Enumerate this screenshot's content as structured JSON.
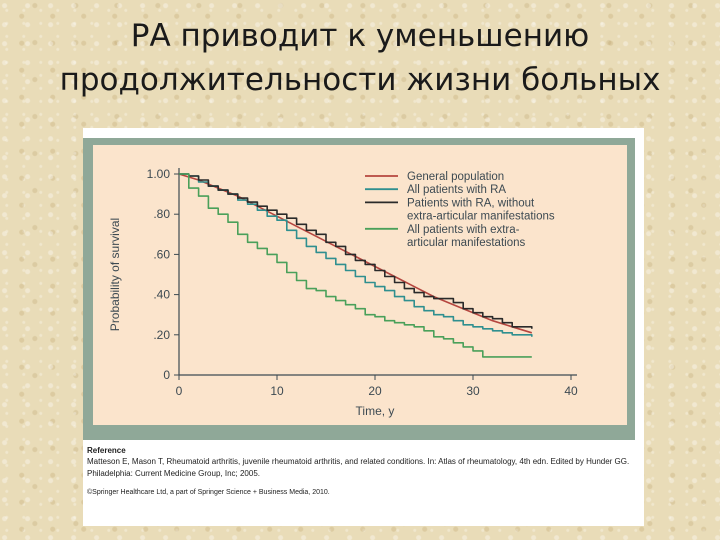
{
  "slide": {
    "title_line1": "РА приводит к уменьшению",
    "title_line2": "продолжительности жизни больных"
  },
  "reference": {
    "heading": "Reference",
    "text": "Matteson E, Mason T, Rheumatoid arthritis, juvenile rheumatoid arthritis, and related conditions. In: Atlas of rheumatology, 4th edn. Edited by Hunder GG. Philadelphia: Current Medicine Group, Inc; 2005.",
    "copyright": "©Springer Healthcare Ltd, a part of Springer Science + Business Media, 2010."
  },
  "colors": {
    "panel_bg": "#8fa898",
    "plot_bg": "#fbe4cc",
    "general_population": "#b5463f",
    "all_ra": "#2f8f8f",
    "ra_without_extra": "#2a2a2a",
    "ra_extra": "#4aa05a"
  },
  "chart_data": {
    "type": "line",
    "title": "",
    "xlabel": "Time, y",
    "ylabel": "Probability of survival",
    "xlim": [
      0,
      40
    ],
    "ylim": [
      0,
      1.0
    ],
    "x_ticks": [
      "0",
      "10",
      "20",
      "30",
      "40"
    ],
    "x_tick_values": [
      0,
      10,
      20,
      30,
      40
    ],
    "y_ticks": [
      "0",
      ".20",
      ".40",
      ".60",
      ".80",
      "1.00"
    ],
    "y_tick_values": [
      0,
      0.2,
      0.4,
      0.6,
      0.8,
      1.0
    ],
    "grid": false,
    "legend_position": "top-right",
    "series": [
      {
        "name": "General population",
        "color_key": "general_population",
        "step": false,
        "x": [
          0,
          2,
          4,
          6,
          8,
          10,
          12,
          14,
          16,
          18,
          20,
          22,
          24,
          26,
          28,
          30,
          32,
          34,
          36
        ],
        "y": [
          1.0,
          0.97,
          0.93,
          0.89,
          0.84,
          0.79,
          0.74,
          0.69,
          0.64,
          0.59,
          0.54,
          0.49,
          0.44,
          0.39,
          0.35,
          0.31,
          0.27,
          0.24,
          0.21
        ]
      },
      {
        "name": "All patients with RA",
        "color_key": "all_ra",
        "step": true,
        "x": [
          0,
          1,
          2,
          3,
          4,
          5,
          6,
          7,
          8,
          9,
          10,
          11,
          12,
          13,
          14,
          15,
          16,
          17,
          18,
          19,
          20,
          21,
          22,
          23,
          24,
          25,
          26,
          27,
          28,
          29,
          30,
          31,
          32,
          33,
          34,
          35,
          36
        ],
        "y": [
          1.0,
          0.99,
          0.96,
          0.94,
          0.92,
          0.9,
          0.87,
          0.85,
          0.82,
          0.79,
          0.77,
          0.72,
          0.68,
          0.64,
          0.61,
          0.58,
          0.55,
          0.52,
          0.49,
          0.46,
          0.44,
          0.42,
          0.39,
          0.37,
          0.34,
          0.32,
          0.3,
          0.29,
          0.27,
          0.25,
          0.24,
          0.23,
          0.22,
          0.21,
          0.2,
          0.2,
          0.19
        ]
      },
      {
        "name": "Patients with RA, without extra-articular manifestations",
        "color_key": "ra_without_extra",
        "step": true,
        "x": [
          0,
          1,
          2,
          3,
          4,
          5,
          6,
          7,
          8,
          9,
          10,
          11,
          12,
          13,
          14,
          15,
          16,
          17,
          18,
          19,
          20,
          21,
          22,
          23,
          24,
          25,
          26,
          27,
          28,
          29,
          30,
          31,
          32,
          33,
          34,
          35,
          36
        ],
        "y": [
          1.0,
          0.99,
          0.97,
          0.94,
          0.92,
          0.9,
          0.88,
          0.86,
          0.84,
          0.82,
          0.8,
          0.78,
          0.75,
          0.72,
          0.7,
          0.66,
          0.64,
          0.6,
          0.57,
          0.55,
          0.52,
          0.49,
          0.46,
          0.43,
          0.41,
          0.39,
          0.38,
          0.38,
          0.36,
          0.33,
          0.31,
          0.29,
          0.28,
          0.26,
          0.24,
          0.24,
          0.23
        ]
      },
      {
        "name": "All patients with extra-articular manifestations",
        "color_key": "ra_extra",
        "step": true,
        "x": [
          0,
          1,
          2,
          3,
          4,
          5,
          6,
          7,
          8,
          9,
          10,
          11,
          12,
          13,
          14,
          15,
          16,
          17,
          18,
          19,
          20,
          21,
          22,
          23,
          24,
          25,
          26,
          27,
          28,
          29,
          30,
          31,
          32,
          33,
          34,
          35,
          36
        ],
        "y": [
          1.0,
          0.93,
          0.89,
          0.83,
          0.8,
          0.76,
          0.7,
          0.66,
          0.63,
          0.6,
          0.56,
          0.51,
          0.47,
          0.43,
          0.42,
          0.39,
          0.37,
          0.35,
          0.33,
          0.3,
          0.29,
          0.27,
          0.26,
          0.25,
          0.24,
          0.22,
          0.19,
          0.18,
          0.16,
          0.14,
          0.12,
          0.09,
          0.09,
          0.09,
          0.09,
          0.09,
          0.09
        ]
      }
    ],
    "legend": [
      {
        "lines": [
          "General population"
        ],
        "color_key": "general_population"
      },
      {
        "lines": [
          "All patients with RA"
        ],
        "color_key": "all_ra"
      },
      {
        "lines": [
          "Patients with RA, without",
          "extra-articular manifestations"
        ],
        "color_key": "ra_without_extra"
      },
      {
        "lines": [
          "All patients with extra-",
          "articular manifestations"
        ],
        "color_key": "ra_extra"
      }
    ]
  }
}
